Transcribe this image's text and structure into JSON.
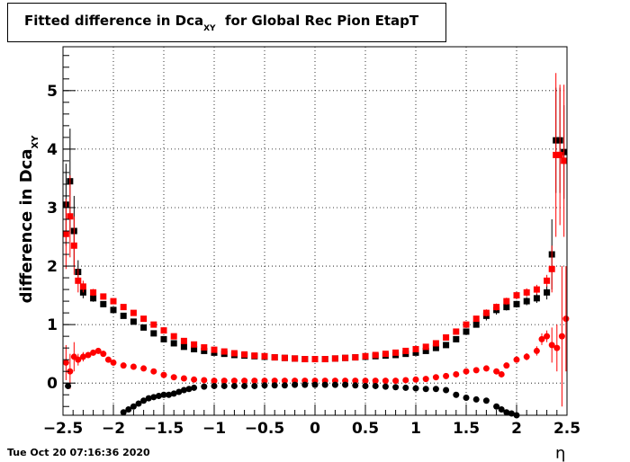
{
  "timestamp": "Tue Oct 20 07:16:36 2020",
  "chart_data": {
    "type": "scatter",
    "title_main": "Fitted difference in Dca",
    "title_sub": "XY",
    "title_rest": "  for Global Rec Pion EtapT",
    "xlabel": "η",
    "ylabel_main": "difference in Dca",
    "ylabel_sub": "XY",
    "xlim": [
      -2.5,
      2.5
    ],
    "ylim": [
      -0.55,
      5.75
    ],
    "grid": true,
    "x_ticks": [
      -2.5,
      -2,
      -1.5,
      -1,
      -0.5,
      0,
      0.5,
      1,
      1.5,
      2,
      2.5
    ],
    "x_tick_labels": [
      "−2.5",
      "−2",
      "−1.5",
      "−1",
      "−0.5",
      "0",
      "0.5",
      "1",
      "1.5",
      "2",
      "2.5"
    ],
    "y_ticks": [
      0,
      1,
      2,
      3,
      4,
      5
    ],
    "y_tick_labels": [
      "0",
      "1",
      "2",
      "3",
      "4",
      "5"
    ],
    "series": [
      {
        "color": "#000000",
        "marker": "square",
        "x": [
          -2.47,
          -2.43,
          -2.39,
          -2.35,
          -2.3,
          -2.2,
          -2.1,
          -2.0,
          -1.9,
          -1.8,
          -1.7,
          -1.6,
          -1.5,
          -1.4,
          -1.3,
          -1.2,
          -1.1,
          -1.0,
          -0.9,
          -0.8,
          -0.7,
          -0.6,
          -0.5,
          -0.4,
          -0.3,
          -0.2,
          -0.1,
          0.0,
          0.1,
          0.2,
          0.3,
          0.4,
          0.5,
          0.6,
          0.7,
          0.8,
          0.9,
          1.0,
          1.1,
          1.2,
          1.3,
          1.4,
          1.5,
          1.6,
          1.7,
          1.8,
          1.9,
          2.0,
          2.1,
          2.2,
          2.3,
          2.35,
          2.39,
          2.43,
          2.47
        ],
        "y": [
          3.05,
          3.45,
          2.6,
          1.9,
          1.55,
          1.45,
          1.35,
          1.25,
          1.15,
          1.05,
          0.95,
          0.85,
          0.75,
          0.68,
          0.62,
          0.58,
          0.55,
          0.52,
          0.5,
          0.48,
          0.47,
          0.46,
          0.45,
          0.44,
          0.43,
          0.42,
          0.41,
          0.41,
          0.41,
          0.42,
          0.43,
          0.44,
          0.45,
          0.46,
          0.47,
          0.48,
          0.5,
          0.52,
          0.55,
          0.6,
          0.65,
          0.75,
          0.88,
          1.0,
          1.15,
          1.25,
          1.3,
          1.35,
          1.4,
          1.45,
          1.55,
          2.2,
          4.15,
          4.15,
          3.95
        ],
        "err": [
          0.7,
          0.9,
          0.6,
          0.2,
          0.1,
          0.06,
          0.05,
          0.04,
          0.03,
          0.03,
          0.03,
          0.02,
          0.02,
          0.02,
          0.02,
          0.02,
          0.02,
          0.02,
          0.02,
          0.02,
          0.02,
          0.02,
          0.02,
          0.02,
          0.02,
          0.02,
          0.02,
          0.02,
          0.02,
          0.02,
          0.02,
          0.02,
          0.02,
          0.02,
          0.02,
          0.02,
          0.02,
          0.02,
          0.02,
          0.02,
          0.03,
          0.03,
          0.04,
          0.05,
          0.08,
          0.08,
          0.06,
          0.06,
          0.07,
          0.08,
          0.12,
          0.6,
          0.9,
          0.9,
          0.8
        ]
      },
      {
        "color": "#ff0000",
        "marker": "square",
        "x": [
          -2.47,
          -2.43,
          -2.39,
          -2.35,
          -2.3,
          -2.2,
          -2.1,
          -2.0,
          -1.9,
          -1.8,
          -1.7,
          -1.6,
          -1.5,
          -1.4,
          -1.3,
          -1.2,
          -1.1,
          -1.0,
          -0.9,
          -0.8,
          -0.7,
          -0.6,
          -0.5,
          -0.4,
          -0.3,
          -0.2,
          -0.1,
          0.0,
          0.1,
          0.2,
          0.3,
          0.4,
          0.5,
          0.6,
          0.7,
          0.8,
          0.9,
          1.0,
          1.1,
          1.2,
          1.3,
          1.4,
          1.5,
          1.6,
          1.7,
          1.8,
          1.9,
          2.0,
          2.1,
          2.2,
          2.3,
          2.35,
          2.39,
          2.43,
          2.47
        ],
        "y": [
          2.55,
          2.85,
          2.35,
          1.75,
          1.65,
          1.55,
          1.48,
          1.4,
          1.3,
          1.2,
          1.1,
          1.0,
          0.9,
          0.8,
          0.72,
          0.66,
          0.61,
          0.57,
          0.54,
          0.51,
          0.49,
          0.47,
          0.46,
          0.44,
          0.43,
          0.42,
          0.41,
          0.41,
          0.41,
          0.42,
          0.43,
          0.44,
          0.46,
          0.48,
          0.5,
          0.52,
          0.55,
          0.58,
          0.62,
          0.68,
          0.78,
          0.88,
          1.0,
          1.1,
          1.2,
          1.3,
          1.4,
          1.5,
          1.55,
          1.6,
          1.75,
          1.95,
          3.9,
          3.9,
          3.8
        ],
        "err": [
          0.6,
          0.7,
          0.5,
          0.2,
          0.1,
          0.06,
          0.05,
          0.04,
          0.03,
          0.03,
          0.03,
          0.02,
          0.02,
          0.02,
          0.02,
          0.02,
          0.02,
          0.02,
          0.02,
          0.02,
          0.02,
          0.02,
          0.02,
          0.02,
          0.02,
          0.02,
          0.02,
          0.02,
          0.02,
          0.02,
          0.02,
          0.02,
          0.02,
          0.02,
          0.02,
          0.02,
          0.02,
          0.02,
          0.02,
          0.02,
          0.03,
          0.03,
          0.04,
          0.05,
          0.06,
          0.06,
          0.06,
          0.06,
          0.07,
          0.08,
          0.1,
          0.4,
          1.4,
          1.2,
          1.3
        ]
      },
      {
        "color": "#ff0000",
        "marker": "circle",
        "x": [
          -2.47,
          -2.43,
          -2.39,
          -2.35,
          -2.3,
          -2.25,
          -2.2,
          -2.15,
          -2.1,
          -2.05,
          -2.0,
          -1.9,
          -1.8,
          -1.7,
          -1.6,
          -1.5,
          -1.4,
          -1.3,
          -1.2,
          -1.1,
          -1.0,
          -0.9,
          -0.8,
          -0.7,
          -0.6,
          -0.5,
          -0.4,
          -0.3,
          -0.2,
          -0.1,
          0.0,
          0.1,
          0.2,
          0.3,
          0.4,
          0.5,
          0.6,
          0.7,
          0.8,
          0.9,
          1.0,
          1.1,
          1.2,
          1.3,
          1.4,
          1.5,
          1.6,
          1.7,
          1.8,
          1.85,
          1.9,
          2.0,
          2.1,
          2.2,
          2.25,
          2.3,
          2.35,
          2.4,
          2.45,
          2.49
        ],
        "y": [
          0.35,
          0.2,
          0.45,
          0.4,
          0.45,
          0.48,
          0.52,
          0.55,
          0.5,
          0.4,
          0.35,
          0.3,
          0.28,
          0.25,
          0.2,
          0.14,
          0.1,
          0.08,
          0.06,
          0.05,
          0.04,
          0.04,
          0.04,
          0.04,
          0.04,
          0.04,
          0.04,
          0.04,
          0.04,
          0.04,
          0.04,
          0.04,
          0.04,
          0.04,
          0.04,
          0.04,
          0.04,
          0.04,
          0.04,
          0.05,
          0.06,
          0.07,
          0.1,
          0.12,
          0.15,
          0.2,
          0.22,
          0.25,
          0.2,
          0.15,
          0.3,
          0.4,
          0.45,
          0.55,
          0.75,
          0.8,
          0.65,
          0.6,
          0.8,
          1.1
        ],
        "err": [
          0.3,
          0.3,
          0.25,
          0.1,
          0.08,
          0.05,
          0.05,
          0.05,
          0.05,
          0.04,
          0.04,
          0.03,
          0.03,
          0.03,
          0.02,
          0.02,
          0.02,
          0.02,
          0.02,
          0.02,
          0.02,
          0.02,
          0.02,
          0.02,
          0.02,
          0.02,
          0.02,
          0.02,
          0.02,
          0.02,
          0.02,
          0.02,
          0.02,
          0.02,
          0.02,
          0.02,
          0.02,
          0.02,
          0.02,
          0.02,
          0.02,
          0.02,
          0.02,
          0.03,
          0.03,
          0.03,
          0.04,
          0.05,
          0.05,
          0.05,
          0.05,
          0.05,
          0.06,
          0.08,
          0.1,
          0.1,
          0.3,
          0.4,
          1.2,
          0.9
        ]
      },
      {
        "color": "#000000",
        "marker": "circle",
        "x": [
          -2.45,
          -1.9,
          -1.85,
          -1.8,
          -1.75,
          -1.7,
          -1.65,
          -1.6,
          -1.55,
          -1.5,
          -1.45,
          -1.4,
          -1.35,
          -1.3,
          -1.25,
          -1.2,
          -1.1,
          -1.0,
          -0.9,
          -0.8,
          -0.7,
          -0.6,
          -0.5,
          -0.4,
          -0.3,
          -0.2,
          -0.1,
          0.0,
          0.1,
          0.2,
          0.3,
          0.4,
          0.5,
          0.6,
          0.7,
          0.8,
          0.9,
          1.0,
          1.1,
          1.2,
          1.3,
          1.4,
          1.5,
          1.6,
          1.7,
          1.8,
          1.85,
          1.9,
          1.95,
          2.0
        ],
        "y": [
          -0.05,
          -0.5,
          -0.45,
          -0.4,
          -0.35,
          -0.3,
          -0.26,
          -0.24,
          -0.22,
          -0.2,
          -0.2,
          -0.18,
          -0.15,
          -0.12,
          -0.1,
          -0.08,
          -0.06,
          -0.05,
          -0.05,
          -0.05,
          -0.05,
          -0.05,
          -0.04,
          -0.04,
          -0.04,
          -0.03,
          -0.03,
          -0.03,
          -0.03,
          -0.03,
          -0.03,
          -0.04,
          -0.05,
          -0.05,
          -0.06,
          -0.07,
          -0.08,
          -0.09,
          -0.1,
          -0.1,
          -0.12,
          -0.2,
          -0.25,
          -0.28,
          -0.3,
          -0.4,
          -0.45,
          -0.5,
          -0.52,
          -0.55
        ],
        "err": [
          0.05,
          0.03,
          0.03,
          0.03,
          0.03,
          0.03,
          0.03,
          0.02,
          0.02,
          0.02,
          0.02,
          0.02,
          0.02,
          0.02,
          0.02,
          0.02,
          0.02,
          0.02,
          0.02,
          0.02,
          0.02,
          0.02,
          0.02,
          0.02,
          0.02,
          0.02,
          0.02,
          0.02,
          0.02,
          0.02,
          0.02,
          0.02,
          0.02,
          0.02,
          0.02,
          0.02,
          0.02,
          0.02,
          0.02,
          0.02,
          0.02,
          0.02,
          0.03,
          0.03,
          0.03,
          0.03,
          0.03,
          0.04,
          0.04,
          0.05
        ]
      }
    ]
  }
}
